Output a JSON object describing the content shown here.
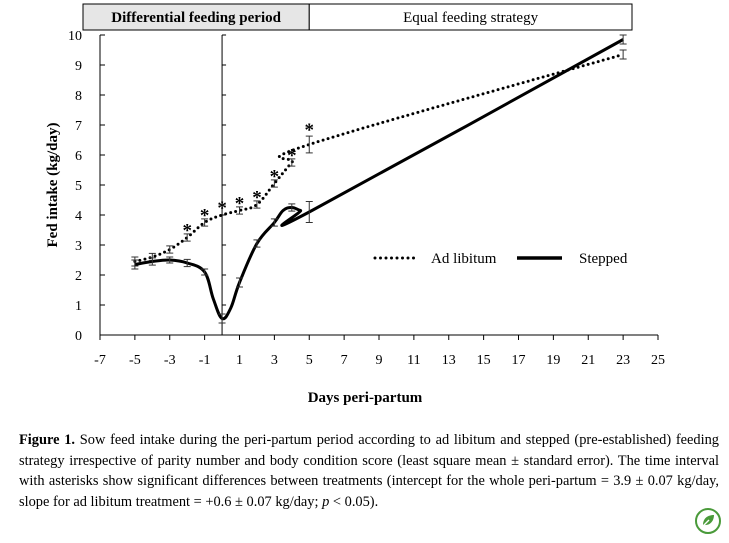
{
  "chart_data": {
    "type": "line",
    "ylabel": "Fed intake (kg/day)",
    "xlabel": "Days peri-partum",
    "xlim": [
      -7,
      25
    ],
    "ylim": [
      0,
      10
    ],
    "x_ticks": [
      -7,
      -5,
      -3,
      -1,
      1,
      3,
      5,
      7,
      9,
      11,
      13,
      15,
      17,
      19,
      21,
      23,
      25
    ],
    "y_ticks": [
      0,
      1,
      2,
      3,
      4,
      5,
      6,
      7,
      8,
      9,
      10
    ],
    "periods": [
      {
        "label": "Differential feeding period",
        "from": -7,
        "to": 5
      },
      {
        "label": "Equal feeding strategy",
        "from": 5,
        "to": 25
      }
    ],
    "legend_position": "middle-right",
    "series": [
      {
        "name": "Ad libitum",
        "style": "dotted",
        "points": [
          [
            -5,
            2.45
          ],
          [
            -4,
            2.6
          ],
          [
            -3,
            2.85
          ],
          [
            -2,
            3.25
          ],
          [
            -1,
            3.75
          ],
          [
            0,
            4.0
          ],
          [
            1,
            4.15
          ],
          [
            2,
            4.35
          ],
          [
            3,
            5.05
          ],
          [
            4,
            5.75
          ],
          [
            5,
            6.35
          ],
          [
            23,
            9.35
          ]
        ],
        "error_bars": [
          [
            -5,
            2.45,
            0.15
          ],
          [
            -4,
            2.6,
            0.12
          ],
          [
            -3,
            2.85,
            0.12
          ],
          [
            -2,
            3.25,
            0.12
          ],
          [
            -1,
            3.75,
            0.12
          ],
          [
            1,
            4.15,
            0.12
          ],
          [
            2,
            4.35,
            0.12
          ],
          [
            3,
            5.05,
            0.12
          ],
          [
            4,
            5.75,
            0.12
          ],
          [
            5,
            6.35,
            0.28
          ],
          [
            23,
            9.35,
            0.15
          ]
        ]
      },
      {
        "name": "Stepped",
        "style": "solid",
        "points": [
          [
            -5,
            2.35
          ],
          [
            -4,
            2.45
          ],
          [
            -3,
            2.5
          ],
          [
            -2,
            2.4
          ],
          [
            -1,
            2.1
          ],
          [
            -0.5,
            1.2
          ],
          [
            0,
            0.55
          ],
          [
            0.5,
            0.9
          ],
          [
            1,
            1.75
          ],
          [
            2,
            3.05
          ],
          [
            3,
            3.75
          ],
          [
            3.5,
            4.15
          ],
          [
            4,
            4.25
          ],
          [
            4.5,
            4.15
          ],
          [
            5,
            4.1
          ],
          [
            23,
            9.85
          ]
        ],
        "error_bars": [
          [
            -5,
            2.35,
            0.15
          ],
          [
            -4,
            2.45,
            0.12
          ],
          [
            -3,
            2.5,
            0.1
          ],
          [
            -2,
            2.4,
            0.12
          ],
          [
            -1,
            2.1,
            0.1
          ],
          [
            0,
            0.55,
            0.15
          ],
          [
            1,
            1.75,
            0.15
          ],
          [
            2,
            3.05,
            0.12
          ],
          [
            3,
            3.75,
            0.12
          ],
          [
            4,
            4.25,
            0.12
          ],
          [
            5,
            4.1,
            0.35
          ],
          [
            23,
            9.85,
            0.15
          ]
        ]
      }
    ],
    "significance_markers": [
      {
        "x": -2,
        "y": 3.55,
        "text": "*"
      },
      {
        "x": -1,
        "y": 4.05,
        "text": "*"
      },
      {
        "x": 0,
        "y": 4.3,
        "text": "*"
      },
      {
        "x": 1,
        "y": 4.45,
        "text": "*"
      },
      {
        "x": 2,
        "y": 4.65,
        "text": "*"
      },
      {
        "x": 3,
        "y": 5.35,
        "text": "*"
      },
      {
        "x": 4,
        "y": 6.05,
        "text": "*"
      },
      {
        "x": 5,
        "y": 6.9,
        "text": "*"
      }
    ],
    "partum_line_x": 0
  },
  "caption": {
    "label": "Figure 1.",
    "text": " Sow feed intake during the peri-partum period according to ad libitum and stepped (pre-established) feeding strategy irrespective of parity number and body condition score (least square mean ± standard error). The time interval with asterisks show significant differences between treatments (intercept for the whole peri-partum = 3.9 ± 0.07 kg/day, slope for ad libitum treatment = +0.6 ± 0.07 kg/day; ",
    "p_symbol": "p",
    "p_suffix": " < 0.05)."
  },
  "badge_icon": "leaf-badge-icon",
  "colors": {
    "line": "#000000",
    "badge": "#4a9a3a",
    "header_fill": "#e6e6e6"
  }
}
